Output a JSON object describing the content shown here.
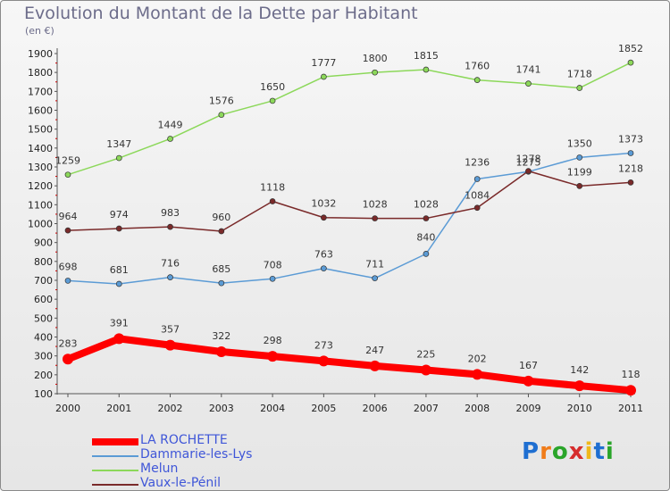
{
  "title": "Evolution du Montant de la Dette par Habitant",
  "subtitle": "(en €)",
  "logo_text": "Proxiti",
  "chart_data": {
    "type": "line",
    "title": "Evolution du Montant de la Dette par Habitant",
    "ylabel": "(en €)",
    "xlabel": "",
    "x": [
      2000,
      2001,
      2002,
      2003,
      2004,
      2005,
      2006,
      2007,
      2008,
      2009,
      2010,
      2011
    ],
    "ylim": [
      100,
      1900
    ],
    "yticks": [
      100,
      200,
      300,
      400,
      500,
      600,
      700,
      800,
      900,
      1000,
      1100,
      1200,
      1300,
      1400,
      1500,
      1600,
      1700,
      1800,
      1900
    ],
    "grid": false,
    "legend_position": "bottom-left",
    "series": [
      {
        "name": "LA ROCHETTE",
        "color": "#ff0000",
        "emphasis": true,
        "values": [
          283,
          391,
          357,
          322,
          298,
          273,
          247,
          225,
          202,
          167,
          142,
          118
        ]
      },
      {
        "name": "Dammarie-les-Lys",
        "color": "#5b9bd5",
        "values": [
          698,
          681,
          716,
          685,
          708,
          763,
          711,
          840,
          1236,
          1275,
          1350,
          1373
        ]
      },
      {
        "name": "Melun",
        "color": "#8cd85a",
        "values": [
          1259,
          1347,
          1449,
          1576,
          1650,
          1777,
          1800,
          1815,
          1760,
          1741,
          1718,
          1852
        ]
      },
      {
        "name": "Vaux-le-Pénil",
        "color": "#7a2a2a",
        "values": [
          964,
          974,
          983,
          960,
          1118,
          1032,
          1028,
          1028,
          1084,
          1278,
          1199,
          1218
        ]
      }
    ]
  }
}
